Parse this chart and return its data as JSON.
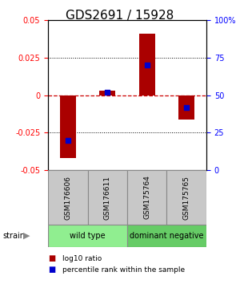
{
  "title": "GDS2691 / 15928",
  "samples": [
    "GSM176606",
    "GSM176611",
    "GSM175764",
    "GSM175765"
  ],
  "log10_ratio": [
    -0.042,
    0.003,
    0.041,
    -0.016
  ],
  "percentile_rank": [
    20,
    52,
    70,
    42
  ],
  "groups": [
    {
      "name": "wild type",
      "samples": [
        0,
        1
      ],
      "color": "#90EE90"
    },
    {
      "name": "dominant negative",
      "samples": [
        2,
        3
      ],
      "color": "#66CC66"
    }
  ],
  "ylim": [
    -0.05,
    0.05
  ],
  "yticks_left": [
    -0.05,
    -0.025,
    0,
    0.025,
    0.05
  ],
  "yticks_right": [
    0,
    25,
    50,
    75,
    100
  ],
  "bar_color": "#AA0000",
  "blue_color": "#0000CC",
  "zero_line_color": "#CC0000",
  "title_fontsize": 11,
  "tick_fontsize": 7,
  "strain_label": "strain",
  "legend_items": [
    {
      "label": "log10 ratio",
      "color": "#AA0000"
    },
    {
      "label": "percentile rank within the sample",
      "color": "#0000CC"
    }
  ]
}
